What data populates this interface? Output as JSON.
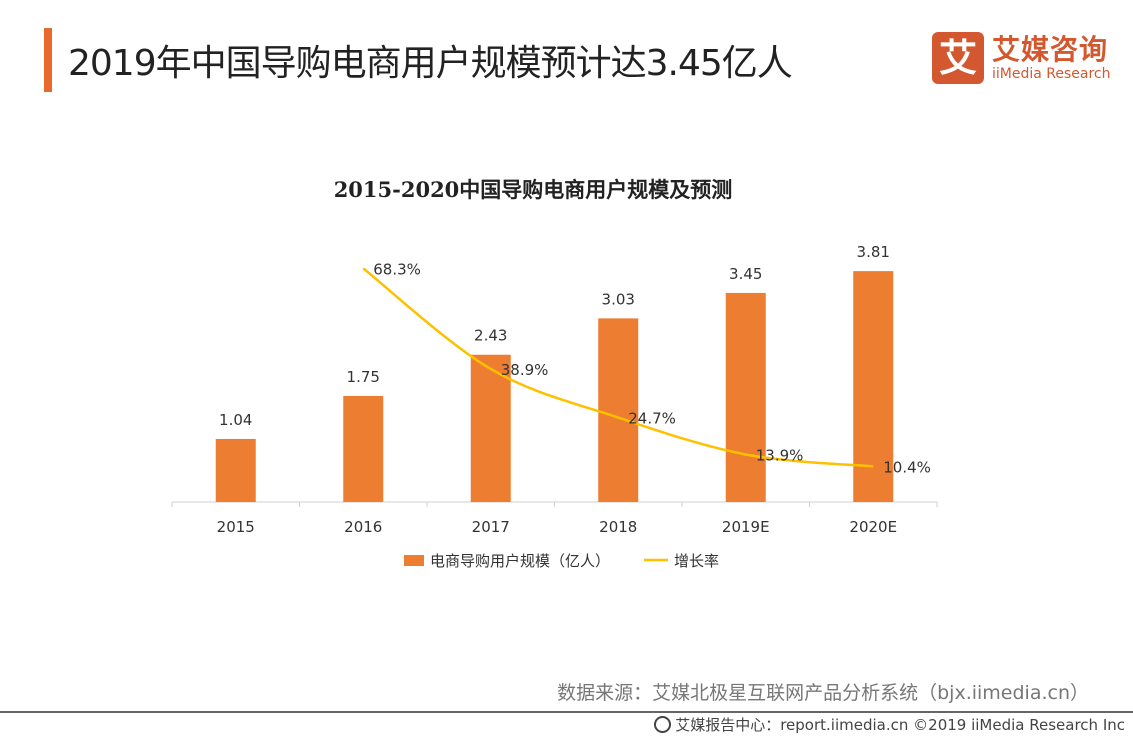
{
  "header": {
    "title": "2019年中国导购电商用户规模预计达3.45亿人",
    "accent_color": "#e8692b"
  },
  "logo": {
    "mark": "艾",
    "cn": "艾媒咨询",
    "en": "iiMedia Research"
  },
  "chart_data": {
    "type": "bar+line",
    "title": "2015-2020中国导购电商用户规模及预测",
    "categories": [
      "2015",
      "2016",
      "2017",
      "2018",
      "2019E",
      "2020E"
    ],
    "series": [
      {
        "name": "电商导购用户规模（亿人）",
        "type": "bar",
        "color": "#ed7d31",
        "values": [
          1.04,
          1.75,
          2.43,
          3.03,
          3.45,
          3.81
        ],
        "labels": [
          "1.04",
          "1.75",
          "2.43",
          "3.03",
          "3.45",
          "3.81"
        ]
      },
      {
        "name": "增长率",
        "type": "line",
        "color": "#ffc000",
        "values": [
          null,
          68.3,
          38.9,
          24.7,
          13.9,
          10.4
        ],
        "labels": [
          "",
          "68.3%",
          "38.9%",
          "24.7%",
          "13.9%",
          "10.4%"
        ],
        "smooth": true
      }
    ],
    "legend": "bottom",
    "grid": false
  },
  "source": "数据来源：艾媒北极星互联网产品分析系统（bjx.iimedia.cn）",
  "footer": "艾媒报告中心：report.iimedia.cn  ©2019  iiMedia Research Inc"
}
